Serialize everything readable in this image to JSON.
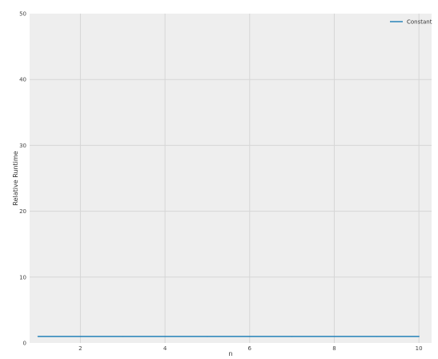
{
  "chart_data": {
    "type": "line",
    "title": "",
    "xlabel": "n",
    "ylabel": "Relative Runtime",
    "xlim": [
      0.8,
      10.3
    ],
    "ylim": [
      0,
      50
    ],
    "x_ticks": [
      2,
      4,
      6,
      8,
      10
    ],
    "y_ticks": [
      0,
      10,
      20,
      30,
      40,
      50
    ],
    "grid": true,
    "legend_position": "top-right",
    "series": [
      {
        "name": "Constant",
        "color": "#348abd",
        "x": [
          1,
          2,
          3,
          4,
          5,
          6,
          7,
          8,
          9,
          10
        ],
        "y": [
          1,
          1,
          1,
          1,
          1,
          1,
          1,
          1,
          1,
          1
        ]
      }
    ],
    "colors": {
      "plot_background": "#eeeeee",
      "grid": "#d6d6d6",
      "page_background": "#ffffff"
    }
  }
}
